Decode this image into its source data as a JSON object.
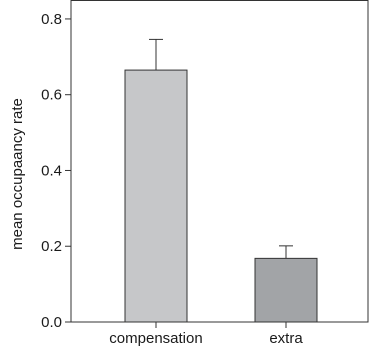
{
  "chart_data": {
    "type": "bar",
    "title": "",
    "xlabel": "",
    "ylabel": "mean occupaancy rate",
    "categories": [
      "compensation",
      "extra"
    ],
    "values": [
      0.665,
      0.168
    ],
    "error_upper": [
      0.746,
      0.201
    ],
    "ylim": [
      0,
      0.85
    ],
    "yticks": [
      0.0,
      0.2,
      0.4,
      0.6,
      0.8
    ],
    "ytick_labels": [
      "0.0",
      "0.2",
      "0.4",
      "0.6",
      "0.8"
    ],
    "bar_colors": [
      "#c6c7c9",
      "#a2a4a7"
    ],
    "grid": false,
    "legend": "none"
  }
}
